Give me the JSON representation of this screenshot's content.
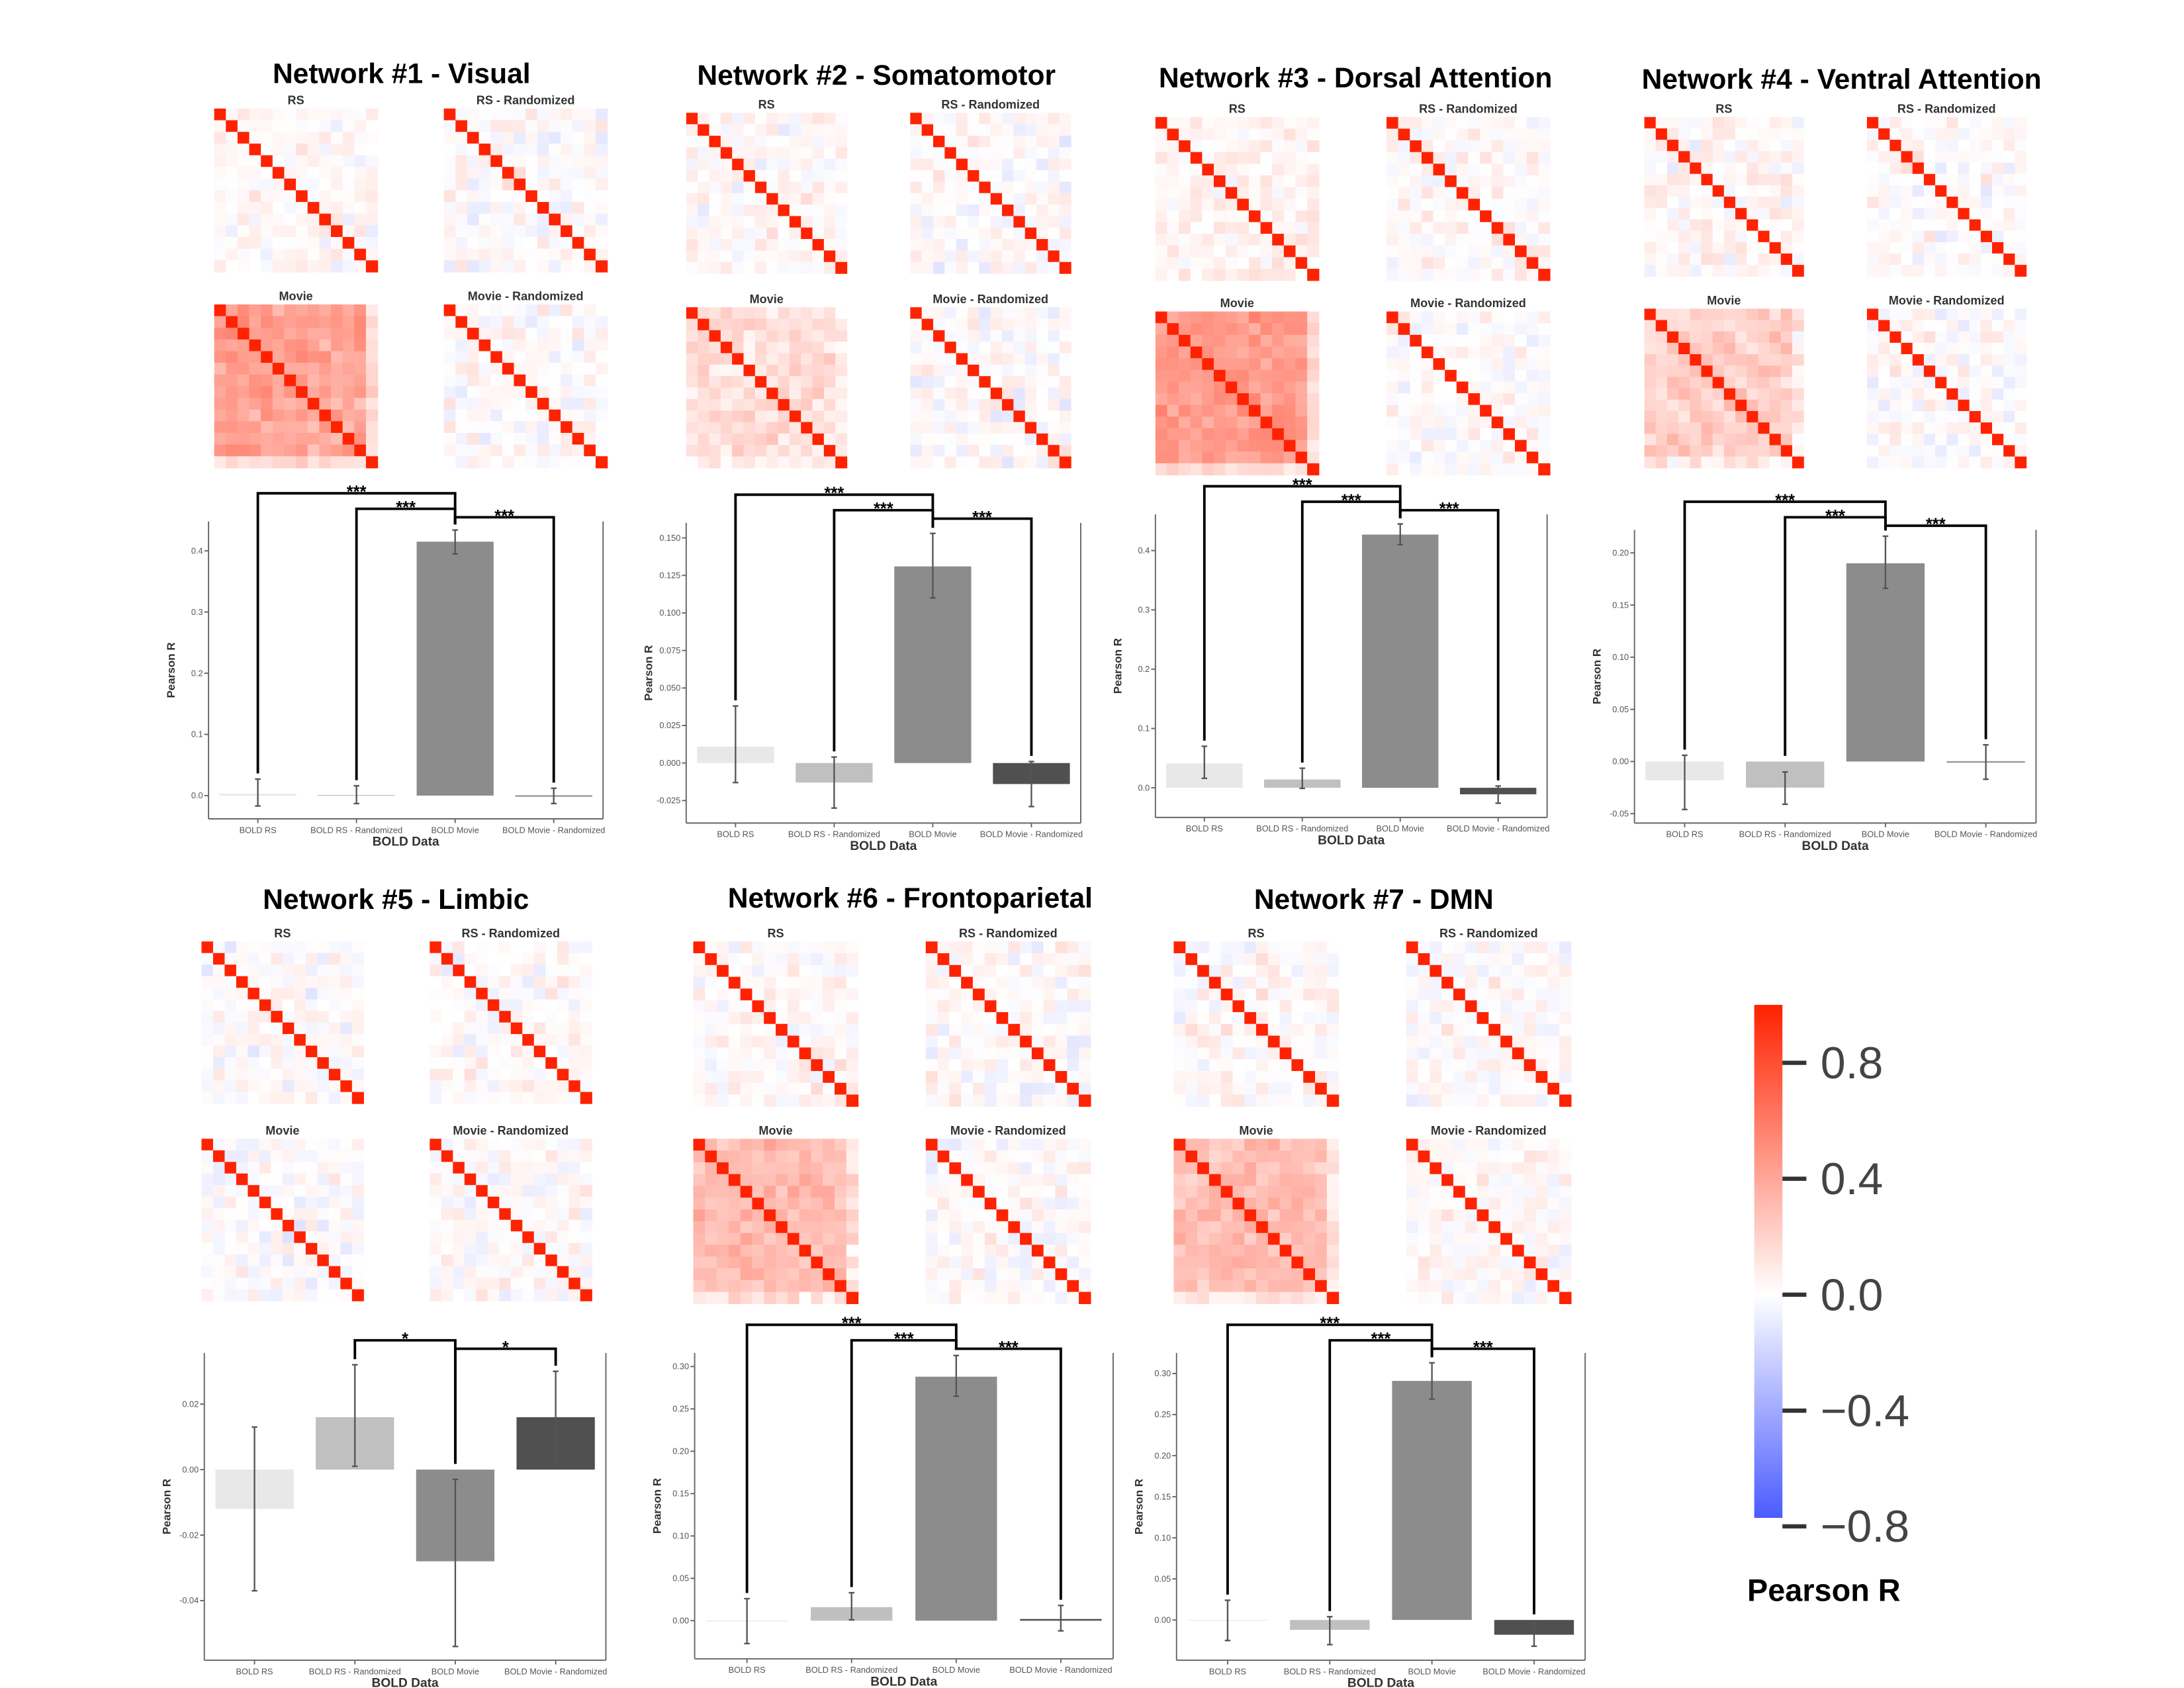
{
  "networks": [
    {
      "title": "Network #1 - Visual",
      "matrices": [
        "RS",
        "RS - Randomized",
        "Movie",
        "Movie - Randomized"
      ]
    },
    {
      "title": "Network #2 - Somatomotor",
      "matrices": [
        "RS",
        "RS - Randomized",
        "Movie",
        "Movie - Randomized"
      ]
    },
    {
      "title": "Network #3 - Dorsal Attention",
      "matrices": [
        "RS",
        "RS - Randomized",
        "Movie",
        "Movie - Randomized"
      ]
    },
    {
      "title": "Network #4 - Ventral Attention",
      "matrices": [
        "RS",
        "RS - Randomized",
        "Movie",
        "Movie - Randomized"
      ]
    },
    {
      "title": "Network #5 - Limbic",
      "matrices": [
        "RS",
        "RS - Randomized",
        "Movie",
        "Movie - Randomized"
      ]
    },
    {
      "title": "Network #6 - Frontoparietal",
      "matrices": [
        "RS",
        "RS - Randomized",
        "Movie",
        "Movie - Randomized"
      ]
    },
    {
      "title": "Network #7 - DMN",
      "matrices": [
        "RS",
        "RS - Randomized",
        "Movie",
        "Movie - Randomized"
      ]
    }
  ],
  "colors": {
    "bars": [
      "#e8e8e8",
      "#c0c0c0",
      "#8c8c8c",
      "#505050"
    ],
    "error_bar": "#555555",
    "bracket": "#000000",
    "heatmap_positive": "#ff2200",
    "heatmap_zero": "#ffffff",
    "heatmap_negative": "#4a5cff"
  },
  "colorbar": {
    "title": "Pearson R",
    "range": [
      -0.77,
      1.0
    ],
    "ticks": [
      0.8,
      0.4,
      0.0,
      -0.4,
      -0.8
    ],
    "tick_labels": [
      "0.8",
      "0.4",
      "0.0",
      "−0.4",
      "−0.8"
    ]
  },
  "chart_data": [
    {
      "type": "bar",
      "xlabel": "BOLD Data",
      "ylabel": "Pearson R",
      "categories": [
        "BOLD RS",
        "BOLD RS - Randomized",
        "BOLD Movie",
        "BOLD Movie - Randomized"
      ],
      "values": [
        0.003,
        0.001,
        0.415,
        0.0
      ],
      "error_low": [
        -0.017,
        -0.013,
        0.395,
        -0.013
      ],
      "error_high": [
        0.027,
        0.016,
        0.434,
        0.012
      ],
      "ylim": [
        -0.038,
        0.448
      ],
      "yticks": [
        0.0,
        0.1,
        0.2,
        0.3,
        0.4
      ],
      "ytick_labels": [
        "0.0",
        "0.1",
        "0.2",
        "0.3",
        "0.4"
      ],
      "significance": [
        {
          "from": 0,
          "to": 2,
          "label": "***"
        },
        {
          "from": 1,
          "to": 2,
          "label": "***"
        },
        {
          "from": 2,
          "to": 3,
          "label": "***"
        }
      ]
    },
    {
      "type": "bar",
      "xlabel": "BOLD Data",
      "ylabel": "Pearson R",
      "categories": [
        "BOLD RS",
        "BOLD RS - Randomized",
        "BOLD Movie",
        "BOLD Movie - Randomized"
      ],
      "values": [
        0.011,
        -0.013,
        0.131,
        -0.014
      ],
      "error_low": [
        -0.013,
        -0.03,
        0.11,
        -0.029
      ],
      "error_high": [
        0.038,
        0.004,
        0.153,
        0.001
      ],
      "ylim": [
        -0.04,
        0.16
      ],
      "yticks": [
        -0.025,
        0.0,
        0.025,
        0.05,
        0.075,
        0.1,
        0.125,
        0.15
      ],
      "ytick_labels": [
        "-0.025",
        "0.000",
        "0.025",
        "0.050",
        "0.075",
        "0.100",
        "0.125",
        "0.150"
      ],
      "significance": [
        {
          "from": 0,
          "to": 2,
          "label": "***"
        },
        {
          "from": 1,
          "to": 2,
          "label": "***"
        },
        {
          "from": 2,
          "to": 3,
          "label": "***"
        }
      ]
    },
    {
      "type": "bar",
      "xlabel": "BOLD Data",
      "ylabel": "Pearson R",
      "categories": [
        "BOLD RS",
        "BOLD RS - Randomized",
        "BOLD Movie",
        "BOLD Movie - Randomized"
      ],
      "values": [
        0.041,
        0.014,
        0.427,
        -0.011
      ],
      "error_low": [
        0.016,
        -0.001,
        0.41,
        -0.026
      ],
      "error_high": [
        0.07,
        0.033,
        0.445,
        0.003
      ],
      "ylim": [
        -0.05,
        0.461
      ],
      "yticks": [
        0.0,
        0.1,
        0.2,
        0.3,
        0.4
      ],
      "ytick_labels": [
        "0.0",
        "0.1",
        "0.2",
        "0.3",
        "0.4"
      ],
      "significance": [
        {
          "from": 0,
          "to": 2,
          "label": "***"
        },
        {
          "from": 1,
          "to": 2,
          "label": "***"
        },
        {
          "from": 2,
          "to": 3,
          "label": "***"
        }
      ]
    },
    {
      "type": "bar",
      "xlabel": "BOLD Data",
      "ylabel": "Pearson R",
      "categories": [
        "BOLD RS",
        "BOLD RS - Randomized",
        "BOLD Movie",
        "BOLD Movie - Randomized"
      ],
      "values": [
        -0.018,
        -0.025,
        0.19,
        0.0
      ],
      "error_low": [
        -0.046,
        -0.041,
        0.166,
        -0.017
      ],
      "error_high": [
        0.006,
        -0.01,
        0.216,
        0.016
      ],
      "ylim": [
        -0.059,
        0.222
      ],
      "yticks": [
        -0.05,
        0.0,
        0.05,
        0.1,
        0.15,
        0.2
      ],
      "ytick_labels": [
        "-0.05",
        "0.00",
        "0.05",
        "0.10",
        "0.15",
        "0.20"
      ],
      "significance": [
        {
          "from": 0,
          "to": 2,
          "label": "***"
        },
        {
          "from": 1,
          "to": 2,
          "label": "***"
        },
        {
          "from": 2,
          "to": 3,
          "label": "***"
        }
      ]
    },
    {
      "type": "bar",
      "xlabel": "BOLD Data",
      "ylabel": "Pearson R",
      "categories": [
        "BOLD RS",
        "BOLD RS - Randomized",
        "BOLD Movie",
        "BOLD Movie - Randomized"
      ],
      "values": [
        -0.012,
        0.016,
        -0.028,
        0.016
      ],
      "error_low": [
        -0.037,
        0.001,
        -0.054,
        0.003
      ],
      "error_high": [
        0.013,
        0.032,
        -0.003,
        0.03
      ],
      "ylim": [
        -0.0582,
        0.0356
      ],
      "yticks": [
        -0.04,
        -0.02,
        0.0,
        0.02
      ],
      "ytick_labels": [
        "-0.04",
        "-0.02",
        "0.00",
        "0.02"
      ],
      "significance": [
        {
          "from": 1,
          "to": 2,
          "label": "*"
        },
        {
          "from": 2,
          "to": 3,
          "label": "*"
        }
      ]
    },
    {
      "type": "bar",
      "xlabel": "BOLD Data",
      "ylabel": "Pearson R",
      "categories": [
        "BOLD RS",
        "BOLD RS - Randomized",
        "BOLD Movie",
        "BOLD Movie - Randomized"
      ],
      "values": [
        0.0,
        0.016,
        0.288,
        0.002
      ],
      "error_low": [
        -0.027,
        0.001,
        0.265,
        -0.012
      ],
      "error_high": [
        0.026,
        0.033,
        0.313,
        0.018
      ],
      "ylim": [
        -0.045,
        0.316
      ],
      "yticks": [
        0.0,
        0.05,
        0.1,
        0.15,
        0.2,
        0.25,
        0.3
      ],
      "ytick_labels": [
        "0.00",
        "0.05",
        "0.10",
        "0.15",
        "0.20",
        "0.25",
        "0.30"
      ],
      "significance": [
        {
          "from": 0,
          "to": 2,
          "label": "***"
        },
        {
          "from": 1,
          "to": 2,
          "label": "***"
        },
        {
          "from": 2,
          "to": 3,
          "label": "***"
        }
      ]
    },
    {
      "type": "bar",
      "xlabel": "BOLD Data",
      "ylabel": "Pearson R",
      "categories": [
        "BOLD RS",
        "BOLD RS - Randomized",
        "BOLD Movie",
        "BOLD Movie - Randomized"
      ],
      "values": [
        0.0,
        -0.012,
        0.291,
        -0.018
      ],
      "error_low": [
        -0.025,
        -0.03,
        0.269,
        -0.032
      ],
      "error_high": [
        0.024,
        0.004,
        0.313,
        -0.004
      ],
      "ylim": [
        -0.049,
        0.325
      ],
      "yticks": [
        0.0,
        0.05,
        0.1,
        0.15,
        0.2,
        0.25,
        0.3
      ],
      "ytick_labels": [
        "0.00",
        "0.05",
        "0.10",
        "0.15",
        "0.20",
        "0.25",
        "0.30"
      ],
      "significance": [
        {
          "from": 0,
          "to": 2,
          "label": "***"
        },
        {
          "from": 1,
          "to": 2,
          "label": "***"
        },
        {
          "from": 2,
          "to": 3,
          "label": "***"
        }
      ]
    }
  ]
}
